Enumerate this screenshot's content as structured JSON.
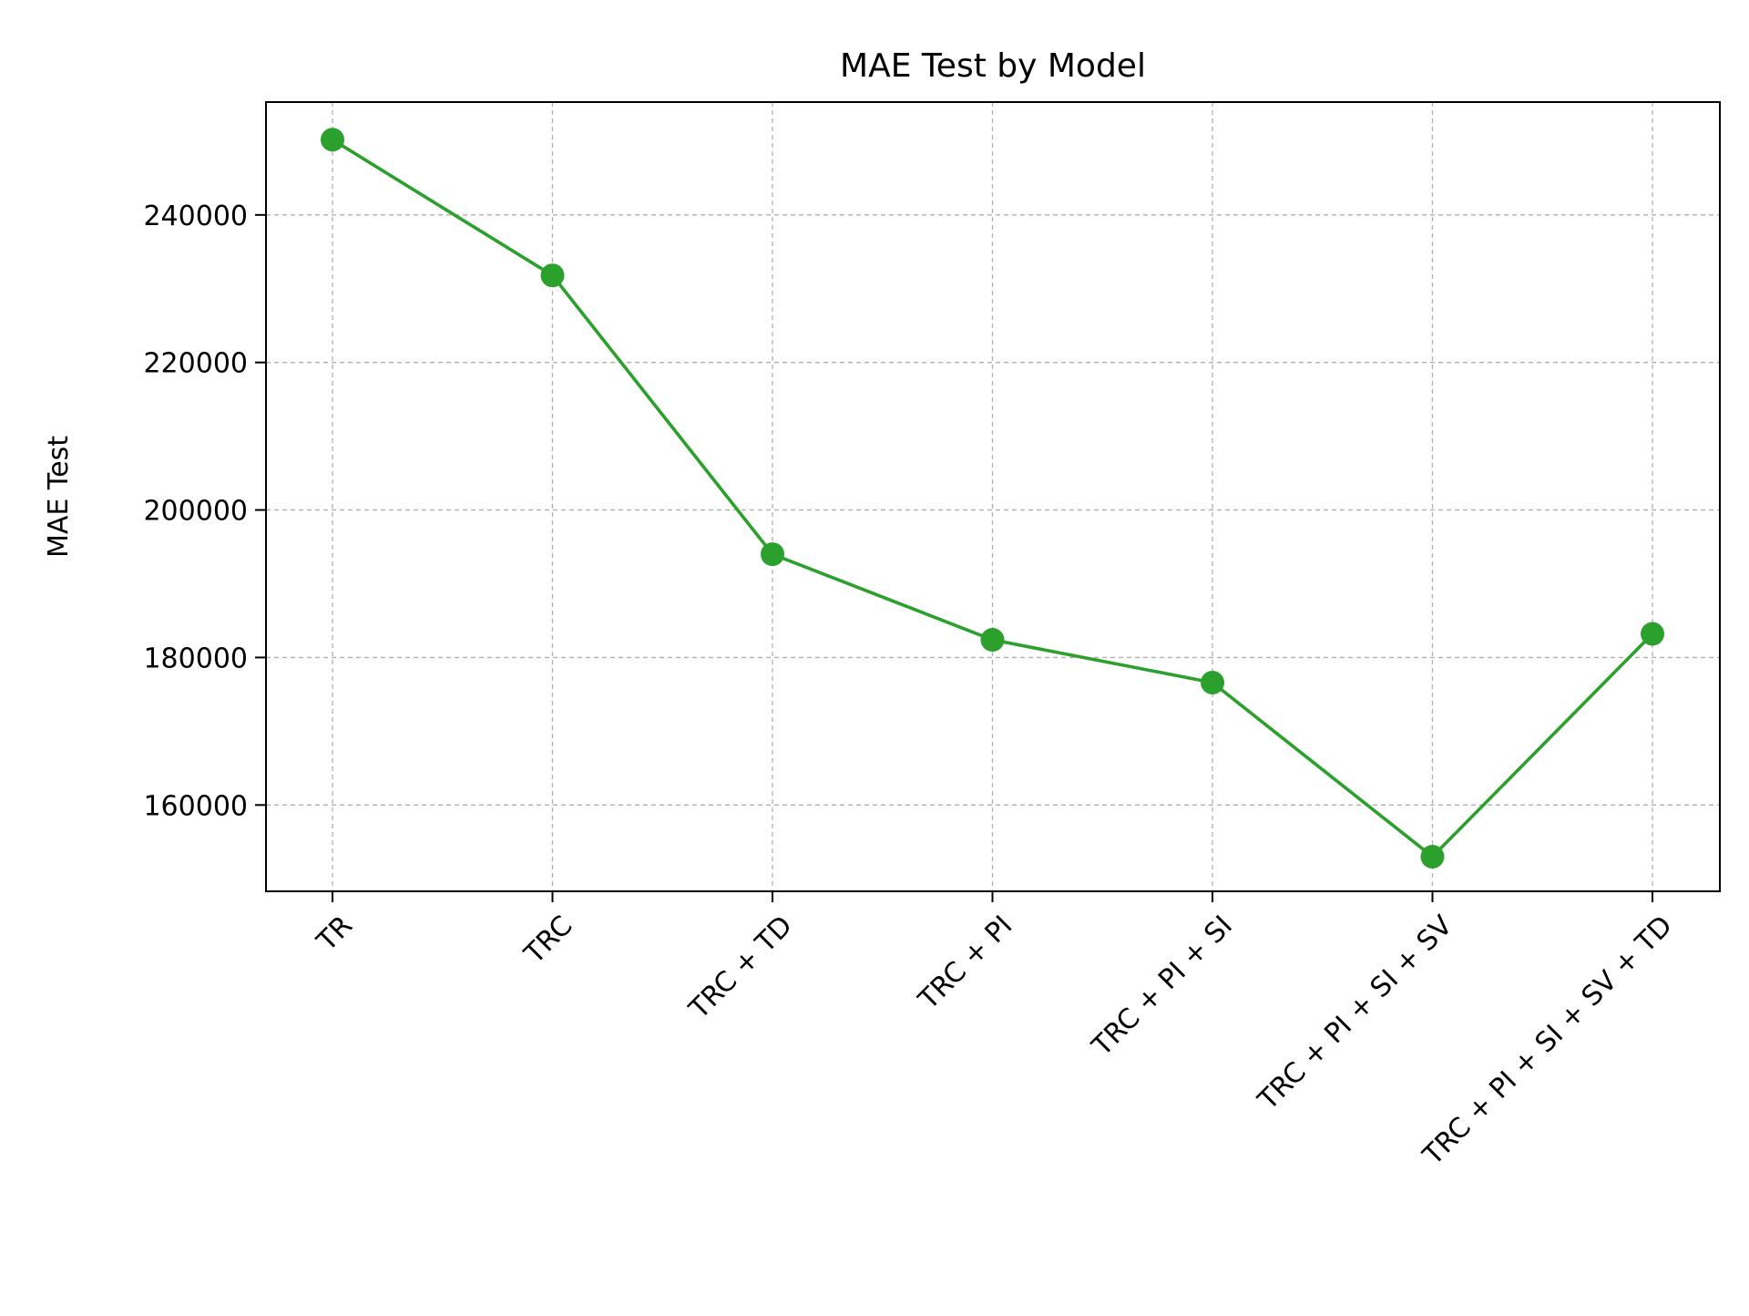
{
  "chart_data": {
    "type": "line",
    "title": "MAE Test by Model",
    "xlabel": "",
    "ylabel": "MAE Test",
    "categories": [
      "TR",
      "TRC",
      "TRC + TD",
      "TRC + PI",
      "TRC + PI + SI",
      "TRC + PI + SI + SV",
      "TRC + PI + SI + SV + TD"
    ],
    "series": [
      {
        "values": [
          250200,
          231800,
          194000,
          182400,
          176600,
          153000,
          183200
        ],
        "color": "#2ca02c",
        "marker": "circle"
      }
    ],
    "ylim": [
      148300,
      255300
    ],
    "yticks": [
      160000,
      180000,
      200000,
      220000,
      240000
    ],
    "ytick_labels": [
      "160000",
      "180000",
      "200000",
      "220000",
      "240000"
    ],
    "grid": true,
    "grid_color": "#b0b0b0",
    "legend": "none",
    "xtick_rotation": -45
  }
}
